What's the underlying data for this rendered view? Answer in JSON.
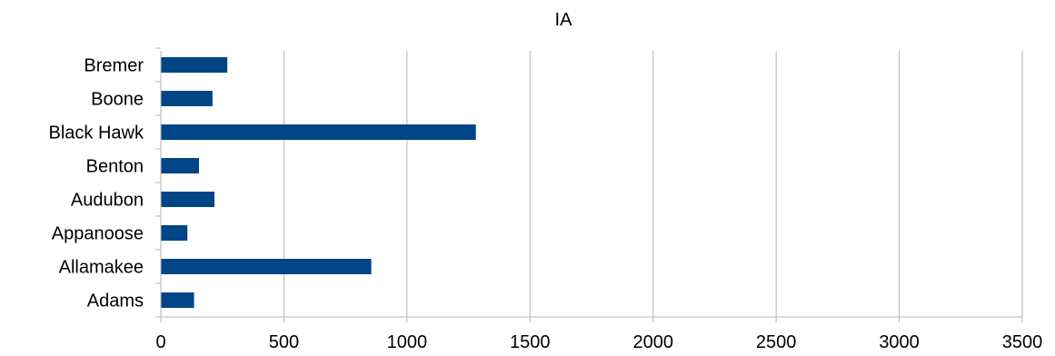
{
  "chart_data": {
    "type": "bar",
    "orientation": "horizontal",
    "title": "IA",
    "xlabel": "",
    "ylabel": "",
    "categories": [
      "Adams",
      "Allamakee",
      "Appanoose",
      "Audubon",
      "Benton",
      "Black Hawk",
      "Boone",
      "Bremer"
    ],
    "values": [
      135,
      855,
      108,
      218,
      155,
      1280,
      210,
      270
    ],
    "xlim": [
      0,
      3500
    ],
    "x_ticks": [
      "0",
      "500",
      "1000",
      "1500",
      "2000",
      "2500",
      "3000",
      "3500"
    ],
    "grid": "vertical",
    "legend": "none",
    "bar_color": "#004586"
  }
}
